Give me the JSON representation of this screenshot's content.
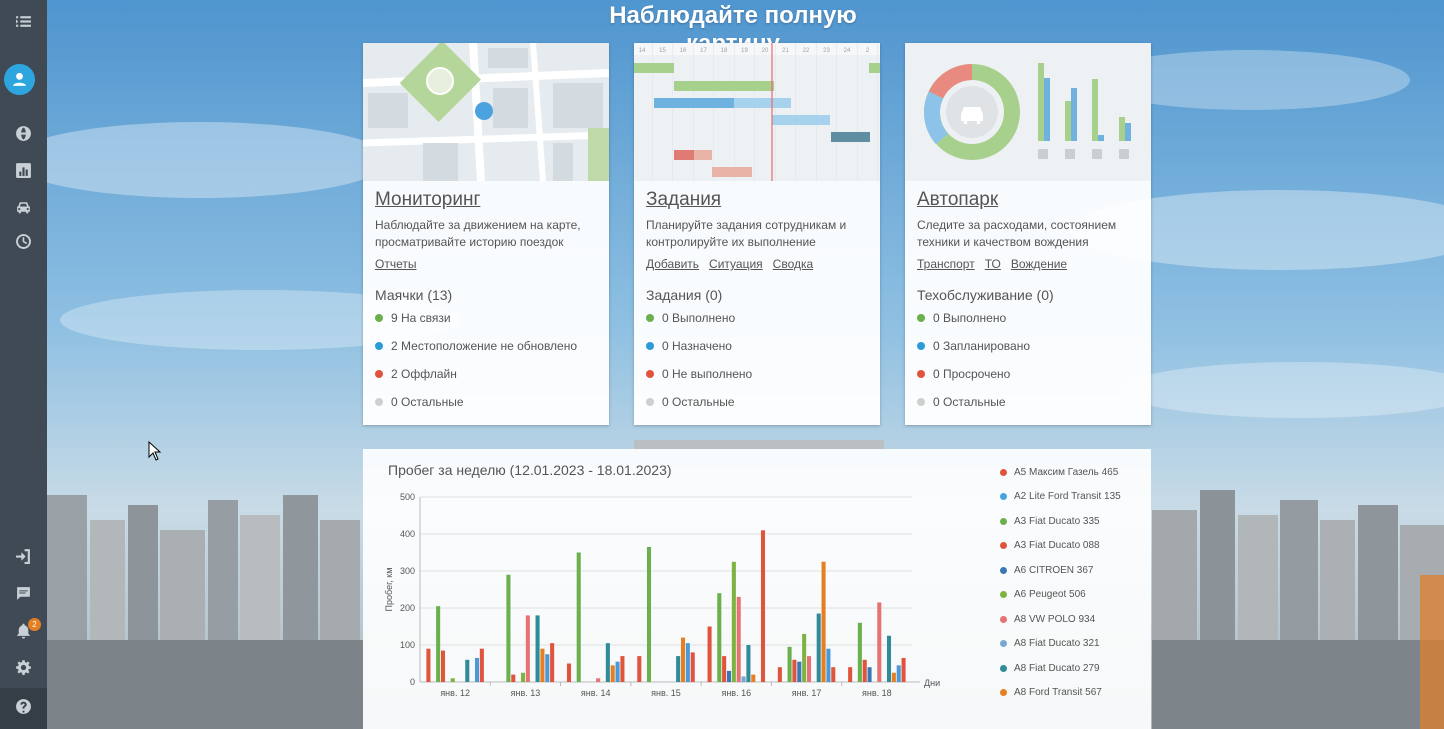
{
  "page": {
    "title": "Наблюдайте полную картину"
  },
  "sidebar": {
    "icons": [
      "menu-collapse-icon",
      "user-icon",
      "globe-icon",
      "reports-icon",
      "car-icon",
      "history-icon",
      "logout-icon",
      "chat-icon",
      "bell-icon",
      "gear-icon",
      "help-icon"
    ],
    "notification_count": "2"
  },
  "colors": {
    "green": "#6ab04c",
    "blue": "#2d9bd8",
    "red": "#e0533d",
    "gray": "#cfcfcf",
    "accent": "#2da6e0"
  },
  "cards": [
    {
      "title": "Мониторинг",
      "desc": "Наблюдайте за движением на карте, просматривайте историю поездок",
      "links": [
        "Отчеты"
      ],
      "subtitle": "Маячки (13)",
      "stats": [
        {
          "text": "9 На связи",
          "color": "#6ab04c"
        },
        {
          "text": "2 Местоположение не обновлено",
          "color": "#2d9bd8"
        },
        {
          "text": "2 Оффлайн",
          "color": "#e0533d"
        },
        {
          "text": "0 Остальные",
          "color": "#cfcfcf"
        }
      ]
    },
    {
      "title": "Задания",
      "desc": "Планируйте задания сотрудникам и контролируйте их выполнение",
      "links": [
        "Добавить",
        "Ситуация",
        "Сводка"
      ],
      "subtitle": "Задания (0)",
      "stats": [
        {
          "text": "0 Выполнено",
          "color": "#6ab04c"
        },
        {
          "text": "0 Назначено",
          "color": "#2d9bd8"
        },
        {
          "text": "0 Не выполнено",
          "color": "#e0533d"
        },
        {
          "text": "0 Остальные",
          "color": "#cfcfcf"
        }
      ]
    },
    {
      "title": "Автопарк",
      "desc": "Следите за расходами, состоянием техники и качеством вождения",
      "links": [
        "Транспорт",
        "ТО",
        "Вождение"
      ],
      "subtitle": "Техобслуживание (0)",
      "stats": [
        {
          "text": "0 Выполнено",
          "color": "#6ab04c"
        },
        {
          "text": "0 Запланировано",
          "color": "#2d9bd8"
        },
        {
          "text": "0 Просрочено",
          "color": "#e0533d"
        },
        {
          "text": "0 Остальные",
          "color": "#cfcfcf"
        }
      ]
    }
  ],
  "tasks_illustration": {
    "date_ticks": [
      "14",
      "15",
      "16",
      "17",
      "18",
      "19",
      "20",
      "21",
      "22",
      "23",
      "24",
      "2"
    ]
  },
  "chart_data": {
    "type": "bar",
    "title": "Пробег за неделю (12.01.2023 - 18.01.2023)",
    "ylabel": "Пробег, км",
    "xlabel": "Дни",
    "ylim": [
      0,
      500
    ],
    "yticks": [
      0,
      100,
      200,
      300,
      400,
      500
    ],
    "grid": true,
    "legend_position": "right",
    "categories": [
      "янв. 12",
      "янв. 13",
      "янв. 14",
      "янв. 15",
      "янв. 16",
      "янв. 17",
      "янв. 18"
    ],
    "series": [
      {
        "name": "А5 Максим Газель 465",
        "color": "#e0533d",
        "values": [
          90,
          0,
          50,
          70,
          150,
          40,
          40
        ]
      },
      {
        "name": "А2 Lite Ford Transit 135",
        "color": "#4aa3df",
        "values": [
          0,
          0,
          0,
          0,
          0,
          0,
          0
        ]
      },
      {
        "name": "А3 Fiat Ducato 335",
        "color": "#6ab04c",
        "values": [
          205,
          290,
          350,
          365,
          240,
          95,
          160
        ]
      },
      {
        "name": "А3 Fiat Ducato 088",
        "color": "#e0533d",
        "values": [
          85,
          20,
          0,
          0,
          70,
          60,
          60
        ]
      },
      {
        "name": "А6 CITROEN 367",
        "color": "#3a78b5",
        "values": [
          0,
          0,
          0,
          0,
          30,
          55,
          40
        ]
      },
      {
        "name": "А6 Peugeot 506",
        "color": "#7cb342",
        "values": [
          10,
          25,
          0,
          0,
          325,
          130,
          0
        ]
      },
      {
        "name": "А8 VW POLO 934",
        "color": "#e57373",
        "values": [
          0,
          180,
          10,
          0,
          230,
          70,
          215
        ]
      },
      {
        "name": "А8 Fiat Ducato 321",
        "color": "#78a7d3",
        "values": [
          0,
          0,
          0,
          0,
          15,
          0,
          0
        ]
      },
      {
        "name": "А8 Fiat Ducato 279",
        "color": "#2f8a9a",
        "values": [
          60,
          180,
          105,
          70,
          100,
          185,
          125
        ]
      },
      {
        "name": "А8 Ford Transit 567",
        "color": "#e67e22",
        "values": [
          0,
          90,
          45,
          120,
          20,
          325,
          25
        ]
      },
      {
        "name": "",
        "color": "#4a9ad8",
        "values": [
          65,
          75,
          55,
          105,
          0,
          90,
          45
        ]
      },
      {
        "name": "",
        "color": "#e0533d",
        "values": [
          90,
          105,
          70,
          80,
          410,
          40,
          65
        ]
      }
    ]
  }
}
